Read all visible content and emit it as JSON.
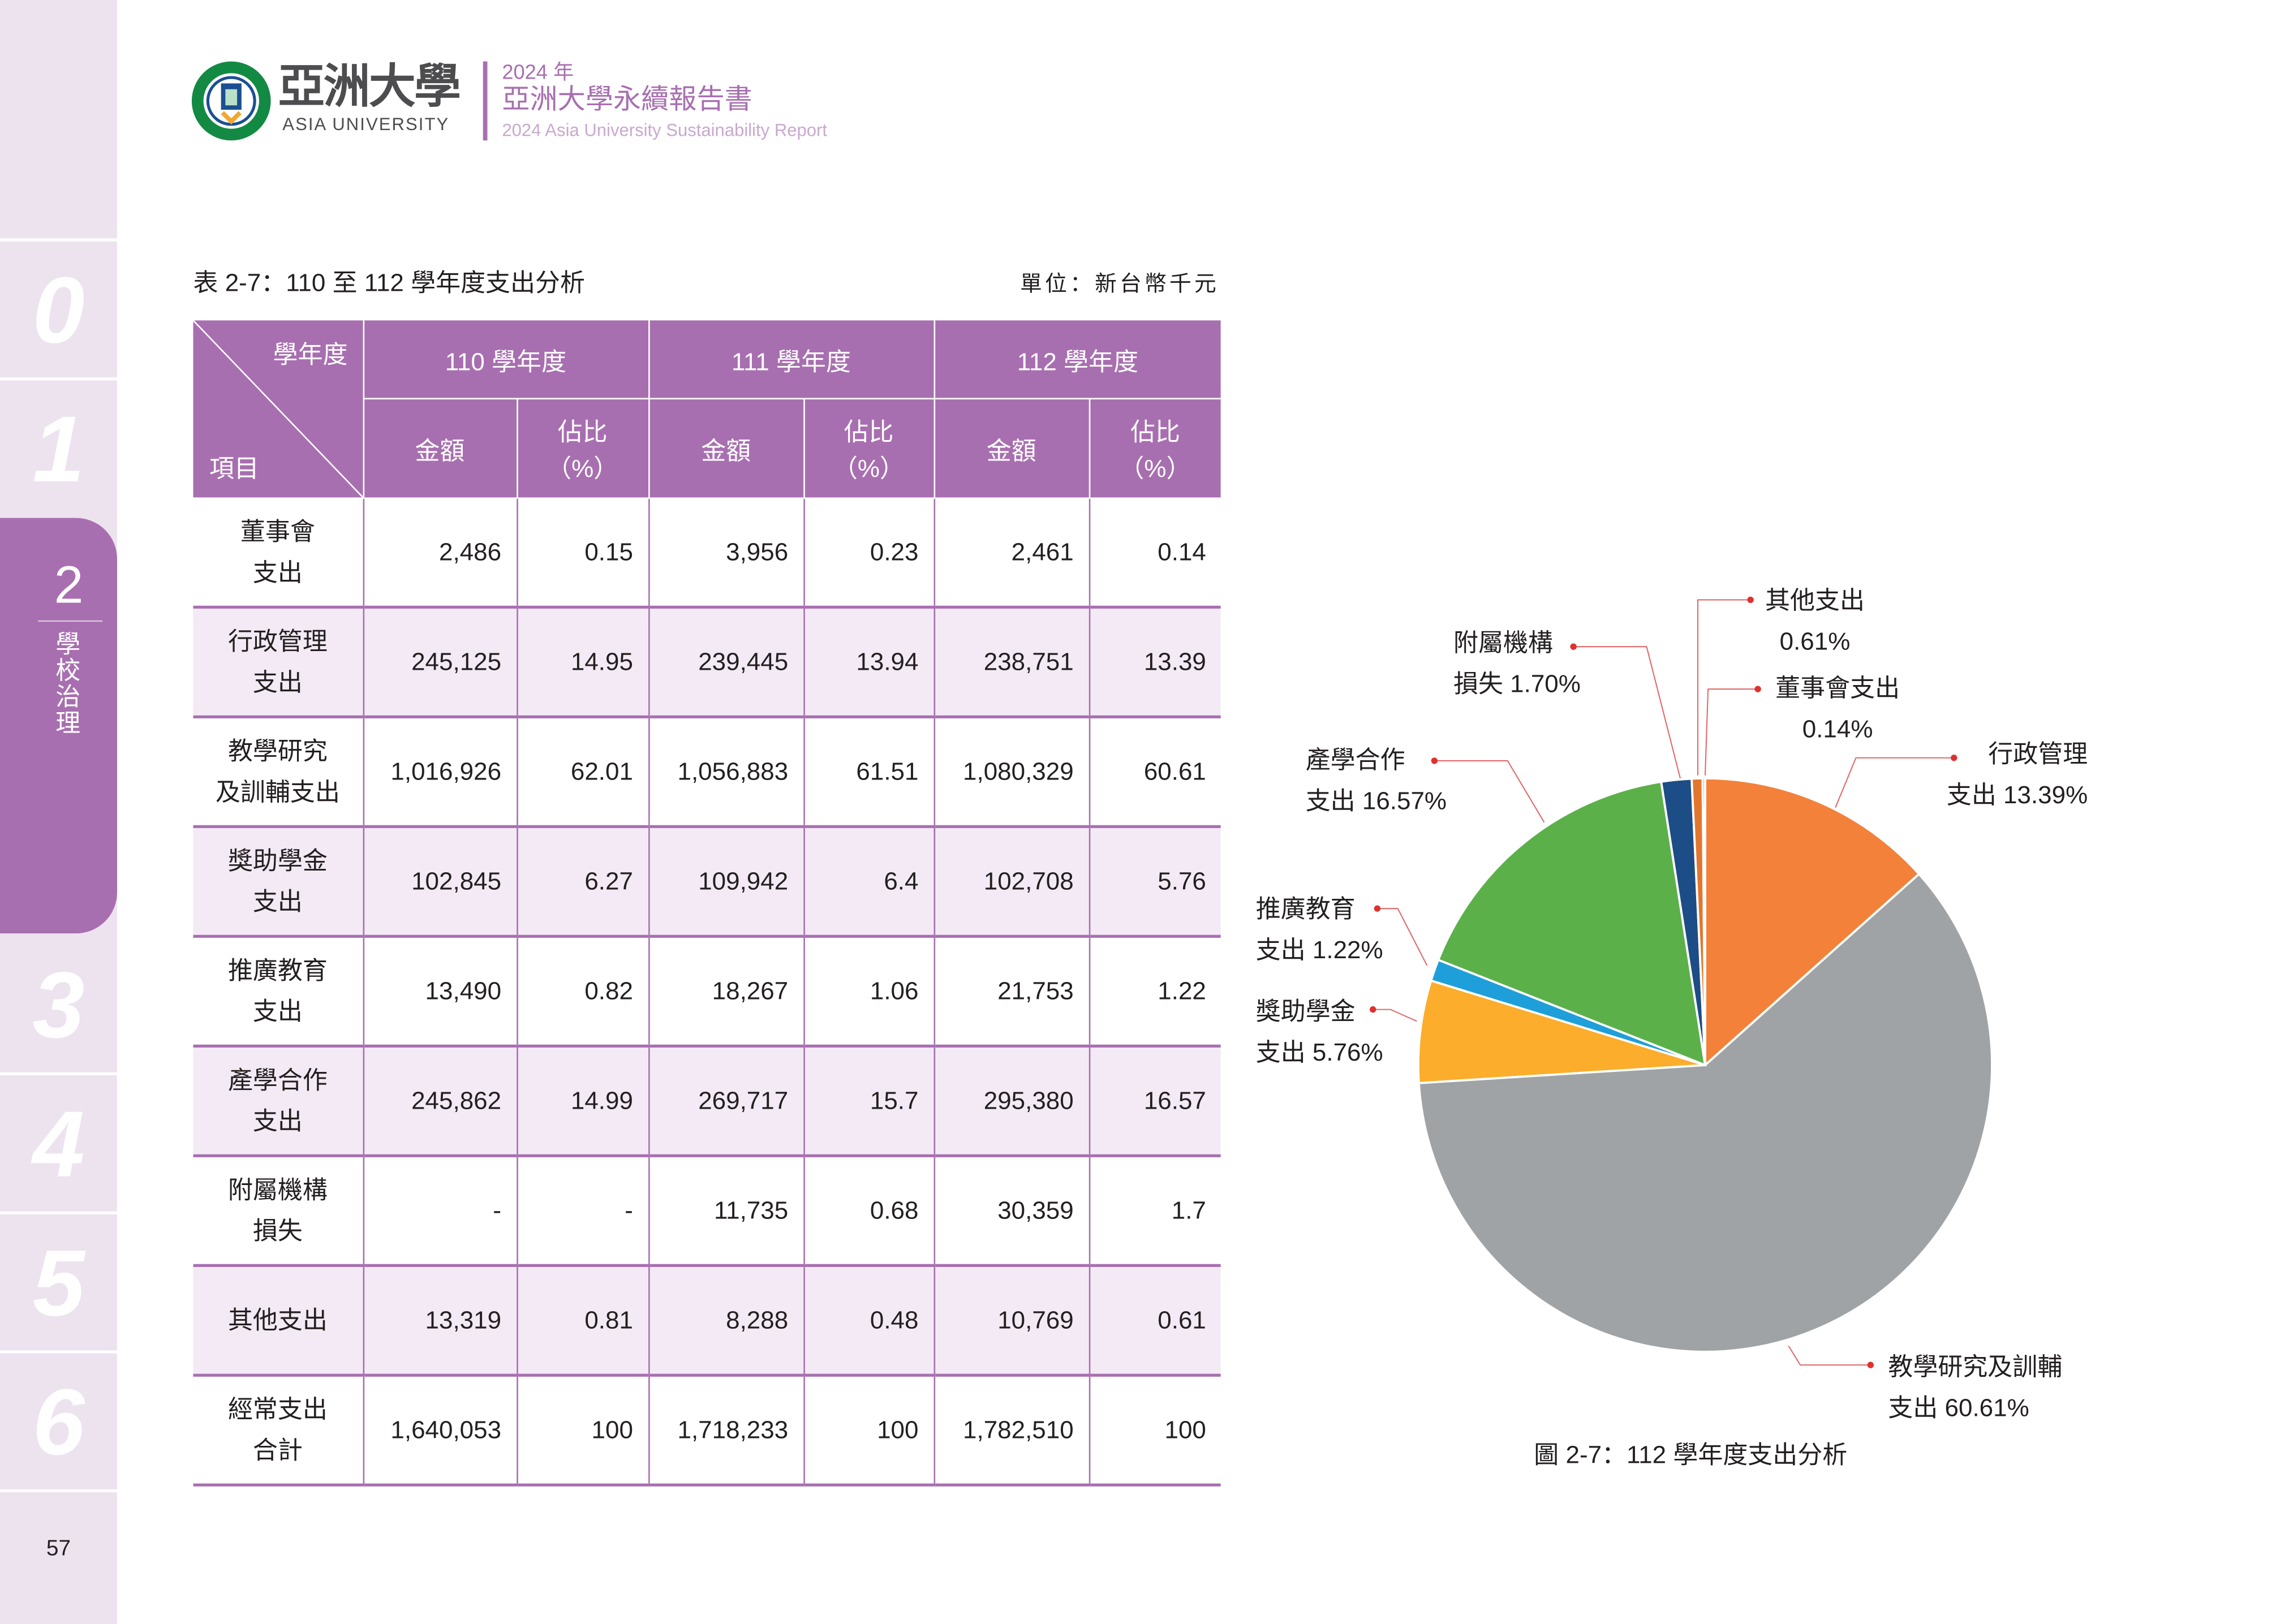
{
  "header": {
    "university_name": "亞洲大學",
    "university_name_en": "ASIA UNIVERSITY",
    "report_year": "2024 年",
    "report_title": "亞洲大學永續報告書",
    "report_title_en": "2024 Asia University Sustainability Report"
  },
  "sidebar": {
    "tabs": [
      "0",
      "1",
      "2",
      "3",
      "4",
      "5",
      "6"
    ],
    "active_tab": "2",
    "active_label": "學校治理",
    "active_color": "#a86fb0"
  },
  "page_number": "57",
  "table": {
    "caption": "表 2-7：110 至 112 學年度支出分析",
    "unit": "單位：新台幣千元",
    "corner_top": "學年度",
    "corner_bottom": "項目",
    "years": [
      "110 學年度",
      "111 學年度",
      "112 學年度"
    ],
    "sub_amount": "金額",
    "sub_pct_1": "佔比",
    "sub_pct_2": "（%）",
    "rows": [
      {
        "item": [
          "董事會",
          "支出"
        ],
        "values": [
          "2,486",
          "0.15",
          "3,956",
          "0.23",
          "2,461",
          "0.14"
        ]
      },
      {
        "item": [
          "行政管理",
          "支出"
        ],
        "values": [
          "245,125",
          "14.95",
          "239,445",
          "13.94",
          "238,751",
          "13.39"
        ]
      },
      {
        "item": [
          "教學研究",
          "及訓輔支出"
        ],
        "values": [
          "1,016,926",
          "62.01",
          "1,056,883",
          "61.51",
          "1,080,329",
          "60.61"
        ]
      },
      {
        "item": [
          "獎助學金",
          "支出"
        ],
        "values": [
          "102,845",
          "6.27",
          "109,942",
          "6.4",
          "102,708",
          "5.76"
        ]
      },
      {
        "item": [
          "推廣教育",
          "支出"
        ],
        "values": [
          "13,490",
          "0.82",
          "18,267",
          "1.06",
          "21,753",
          "1.22"
        ]
      },
      {
        "item": [
          "產學合作",
          "支出"
        ],
        "values": [
          "245,862",
          "14.99",
          "269,717",
          "15.7",
          "295,380",
          "16.57"
        ]
      },
      {
        "item": [
          "附屬機構",
          "損失"
        ],
        "values": [
          "-",
          "-",
          "11,735",
          "0.68",
          "30,359",
          "1.7"
        ]
      },
      {
        "item": [
          "其他支出",
          ""
        ],
        "values": [
          "13,319",
          "0.81",
          "8,288",
          "0.48",
          "10,769",
          "0.61"
        ]
      },
      {
        "item": [
          "經常支出",
          "合計"
        ],
        "values": [
          "1,640,053",
          "100",
          "1,718,233",
          "100",
          "1,782,510",
          "100"
        ]
      }
    ]
  },
  "chart_data": {
    "type": "pie",
    "title": "圖 2-7：112 學年度支出分析",
    "unit": "%",
    "slices": [
      {
        "name": "行政管理支出",
        "label": [
          "行政管理",
          "支出 13.39%"
        ],
        "value": 13.39,
        "color": "#f3813a"
      },
      {
        "name": "教學研究及訓輔支出",
        "label": [
          "教學研究及訓輔",
          "支出 60.61%"
        ],
        "value": 60.61,
        "color": "#a0a3a6"
      },
      {
        "name": "獎助學金支出",
        "label": [
          "獎助學金",
          "支出 5.76%"
        ],
        "value": 5.76,
        "color": "#fbad2b"
      },
      {
        "name": "推廣教育支出",
        "label": [
          "推廣教育",
          "支出 1.22%"
        ],
        "value": 1.22,
        "color": "#1f9fd9"
      },
      {
        "name": "產學合作支出",
        "label": [
          "產學合作",
          "支出 16.57%"
        ],
        "value": 16.57,
        "color": "#5cb04a"
      },
      {
        "name": "附屬機構損失",
        "label": [
          "附屬機構",
          "損失 1.70%"
        ],
        "value": 1.7,
        "color": "#1d4d86"
      },
      {
        "name": "其他支出",
        "label": [
          "其他支出",
          "0.61%"
        ],
        "value": 0.61,
        "color": "#e2762f"
      },
      {
        "name": "董事會支出",
        "label": [
          "董事會支出",
          "0.14%"
        ],
        "value": 0.14,
        "color": "#c9413a"
      }
    ],
    "label_dot_color": "#e0312e",
    "leader_color": "#999999"
  }
}
